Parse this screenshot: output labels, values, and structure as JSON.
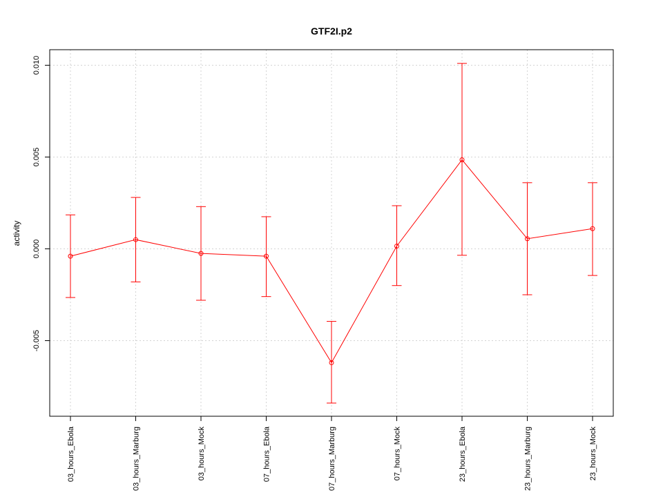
{
  "chart_data": {
    "type": "line",
    "title": "GTF2I.p2",
    "xlabel": "",
    "ylabel": "activity",
    "categories": [
      "03_hours_Ebola",
      "03_hours_Marburg",
      "03_hours_Mock",
      "07_hours_Ebola",
      "07_hours_Marburg",
      "07_hours_Mock",
      "23_hours_Ebola",
      "23_hours_Marburg",
      "23_hours_Mock"
    ],
    "series": [
      {
        "values": [
          -0.0004,
          0.0005,
          -0.00025,
          -0.0004,
          -0.0062,
          0.00015,
          0.00485,
          0.00055,
          0.0011
        ],
        "error_upper": [
          0.00185,
          0.0028,
          0.0023,
          0.00175,
          -0.00395,
          0.00235,
          0.0101,
          0.0036,
          0.0036
        ],
        "error_lower": [
          -0.00265,
          -0.0018,
          -0.0028,
          -0.0026,
          -0.0084,
          -0.002,
          -0.00035,
          -0.0025,
          -0.00145
        ],
        "color": "#ff0000"
      }
    ],
    "yticks": [
      -0.005,
      0.0,
      0.005,
      0.01
    ],
    "ytick_labels": [
      "-0.005",
      "0.000",
      "0.005",
      "0.010"
    ],
    "ylim": [
      -0.0092,
      0.0109
    ],
    "grid": true,
    "grid_color": "#d3d3d3",
    "legend": "none"
  }
}
